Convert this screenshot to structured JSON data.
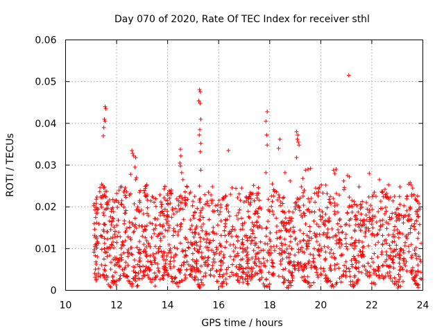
{
  "chart_data": {
    "type": "scatter",
    "title": "Day 070 of 2020, Rate Of TEC Index for receiver sthl",
    "xlabel": "GPS time / hours",
    "ylabel": "ROTI / TECUs",
    "xlim": [
      10,
      24
    ],
    "ylim": [
      0,
      0.06
    ],
    "xticks": [
      10,
      12,
      14,
      16,
      18,
      20,
      22,
      24
    ],
    "xtick_labels": [
      "10",
      "12",
      "14",
      "16",
      "18",
      "20",
      "22",
      "24"
    ],
    "yticks": [
      0,
      0.01,
      0.02,
      0.03,
      0.04,
      0.05,
      0.06
    ],
    "ytick_labels": [
      "0",
      "0.01",
      "0.02",
      "0.03",
      "0.04",
      "0.05",
      "0.06"
    ],
    "grid": true,
    "marker": "+",
    "color": "#ff0000",
    "bulk": {
      "x_start": 11.1,
      "x_end": 23.95,
      "y_min": 0.002,
      "y_max": 0.024,
      "count": 1800
    },
    "series": [
      {
        "name": "ROTI",
        "points": [
          [
            11.55,
            0.044
          ],
          [
            11.58,
            0.0435
          ],
          [
            11.52,
            0.041
          ],
          [
            11.55,
            0.0405
          ],
          [
            11.5,
            0.039
          ],
          [
            11.48,
            0.037
          ],
          [
            11.5,
            0.0245
          ],
          [
            11.55,
            0.0225
          ],
          [
            12.6,
            0.0335
          ],
          [
            12.63,
            0.0328
          ],
          [
            12.67,
            0.0322
          ],
          [
            12.75,
            0.0318
          ],
          [
            12.72,
            0.0295
          ],
          [
            12.78,
            0.027
          ],
          [
            12.75,
            0.0265
          ],
          [
            12.55,
            0.0278
          ],
          [
            14.5,
            0.0338
          ],
          [
            14.52,
            0.0322
          ],
          [
            14.48,
            0.0305
          ],
          [
            14.5,
            0.0298
          ],
          [
            14.55,
            0.0282
          ],
          [
            14.6,
            0.0265
          ],
          [
            15.25,
            0.0481
          ],
          [
            15.28,
            0.0476
          ],
          [
            15.22,
            0.0454
          ],
          [
            15.27,
            0.0448
          ],
          [
            15.3,
            0.041
          ],
          [
            15.26,
            0.0385
          ],
          [
            15.24,
            0.0372
          ],
          [
            15.3,
            0.0352
          ],
          [
            15.28,
            0.0332
          ],
          [
            15.3,
            0.0288
          ],
          [
            15.25,
            0.025
          ],
          [
            16.38,
            0.0335
          ],
          [
            17.9,
            0.0428
          ],
          [
            17.85,
            0.0405
          ],
          [
            17.88,
            0.0372
          ],
          [
            17.9,
            0.0348
          ],
          [
            17.85,
            0.0282
          ],
          [
            18.4,
            0.0362
          ],
          [
            18.35,
            0.034
          ],
          [
            18.6,
            0.0282
          ],
          [
            19.05,
            0.038
          ],
          [
            19.1,
            0.0372
          ],
          [
            19.08,
            0.0362
          ],
          [
            19.12,
            0.0355
          ],
          [
            19.15,
            0.0348
          ],
          [
            19.05,
            0.0318
          ],
          [
            19.4,
            0.0288
          ],
          [
            19.5,
            0.029
          ],
          [
            19.6,
            0.0292
          ],
          [
            20.5,
            0.0288
          ],
          [
            20.55,
            0.028
          ],
          [
            20.6,
            0.029
          ],
          [
            21.1,
            0.0515
          ],
          [
            21.05,
            0.0275
          ],
          [
            21.12,
            0.0272
          ],
          [
            21.9,
            0.028
          ],
          [
            22.3,
            0.0265
          ],
          [
            23.5,
            0.0258
          ],
          [
            23.55,
            0.0252
          ],
          [
            23.6,
            0.0245
          ],
          [
            11.2,
            0.0185
          ],
          [
            11.6,
            0.0195
          ],
          [
            12.2,
            0.0215
          ],
          [
            12.9,
            0.0235
          ],
          [
            13.4,
            0.0225
          ],
          [
            14.0,
            0.0215
          ],
          [
            14.9,
            0.0235
          ],
          [
            15.6,
            0.0235
          ],
          [
            16.2,
            0.022
          ],
          [
            16.9,
            0.0245
          ],
          [
            17.5,
            0.0228
          ],
          [
            18.1,
            0.0255
          ],
          [
            18.8,
            0.0262
          ],
          [
            19.3,
            0.0268
          ],
          [
            19.8,
            0.0245
          ],
          [
            20.2,
            0.0252
          ],
          [
            20.9,
            0.0262
          ],
          [
            21.5,
            0.0248
          ],
          [
            22.1,
            0.0235
          ],
          [
            22.6,
            0.0222
          ],
          [
            23.1,
            0.0248
          ],
          [
            23.8,
            0.0212
          ],
          [
            12.1,
            0.0025
          ],
          [
            13.0,
            0.0028
          ],
          [
            14.2,
            0.0022
          ],
          [
            15.1,
            0.0032
          ],
          [
            17.2,
            0.0035
          ],
          [
            18.6,
            0.0025
          ],
          [
            20.8,
            0.002
          ],
          [
            21.3,
            0.0015
          ],
          [
            22.8,
            0.0022
          ],
          [
            23.9,
            0.0028
          ]
        ]
      }
    ]
  }
}
